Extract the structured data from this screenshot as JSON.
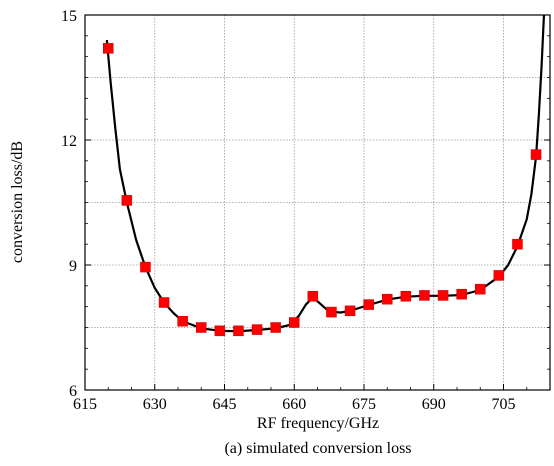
{
  "caption": "(a) simulated conversion loss",
  "chart_data": {
    "type": "line",
    "title": "",
    "xlabel": "RF frequency/GHz",
    "ylabel": "conversion loss/dB",
    "xlim": [
      615,
      715
    ],
    "ylim": [
      6,
      15
    ],
    "x_ticks": [
      "615",
      "630",
      "645",
      "660",
      "675",
      "690",
      "705"
    ],
    "y_ticks": [
      "6",
      "9",
      "12",
      "15"
    ],
    "grid": true,
    "series": [
      {
        "curve": [
          [
            619.7,
            14.4
          ],
          [
            620.5,
            13.4
          ],
          [
            621.5,
            12.3
          ],
          [
            622.5,
            11.3
          ],
          [
            624,
            10.5
          ],
          [
            626,
            9.6
          ],
          [
            628,
            8.95
          ],
          [
            630,
            8.45
          ],
          [
            632,
            8.1
          ],
          [
            634,
            7.85
          ],
          [
            636,
            7.65
          ],
          [
            640,
            7.48
          ],
          [
            644,
            7.42
          ],
          [
            648,
            7.41
          ],
          [
            652,
            7.44
          ],
          [
            656,
            7.48
          ],
          [
            659,
            7.56
          ],
          [
            661,
            7.78
          ],
          [
            662.5,
            8.05
          ],
          [
            664,
            8.22
          ],
          [
            665.5,
            8.08
          ],
          [
            667.5,
            7.88
          ],
          [
            670,
            7.86
          ],
          [
            672,
            7.9
          ],
          [
            676,
            8.04
          ],
          [
            680,
            8.17
          ],
          [
            684,
            8.24
          ],
          [
            688,
            8.26
          ],
          [
            692,
            8.26
          ],
          [
            696,
            8.28
          ],
          [
            700,
            8.4
          ],
          [
            704,
            8.72
          ],
          [
            706,
            9.0
          ],
          [
            708,
            9.45
          ],
          [
            710,
            10.1
          ],
          [
            711,
            10.7
          ],
          [
            712,
            11.6
          ],
          [
            712.6,
            12.6
          ],
          [
            713.2,
            13.8
          ],
          [
            713.7,
            15.0
          ]
        ],
        "markers_x": [
          620,
          624,
          628,
          632,
          636,
          640,
          644,
          648,
          652,
          656,
          660,
          664,
          668,
          672,
          676,
          680,
          684,
          688,
          692,
          696,
          700,
          704,
          708,
          712
        ],
        "markers_y": [
          14.2,
          10.55,
          8.95,
          8.1,
          7.65,
          7.5,
          7.42,
          7.42,
          7.45,
          7.5,
          7.62,
          8.25,
          7.87,
          7.9,
          8.05,
          8.18,
          8.25,
          8.27,
          8.27,
          8.3,
          8.42,
          8.75,
          9.5,
          11.65
        ],
        "line_color": "#000000",
        "marker_color": "#ff0000"
      }
    ]
  }
}
